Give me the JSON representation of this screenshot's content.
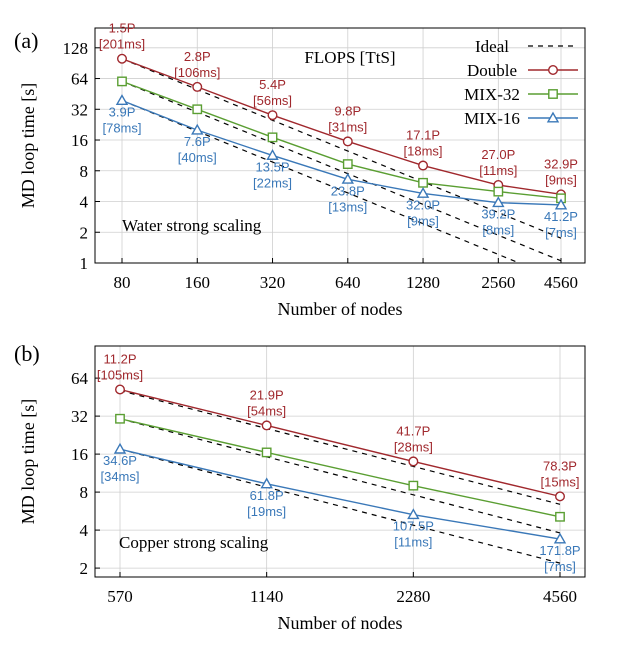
{
  "chart_data": [
    {
      "type": "line",
      "panel_label": "(a)",
      "xlabel": "Number of nodes",
      "ylabel": "MD loop time [s]",
      "x_scale": "log2",
      "y_scale": "log2",
      "x": [
        80,
        160,
        320,
        640,
        1280,
        2560,
        4560
      ],
      "x_tick_labels": [
        "80",
        "160",
        "320",
        "640",
        "1280",
        "2560",
        "4560"
      ],
      "ylim": [
        1,
        200
      ],
      "y_ticks": [
        1,
        2,
        4,
        8,
        16,
        32,
        64,
        128
      ],
      "y_tick_labels": [
        "1",
        "2",
        "4",
        "8",
        "16",
        "32",
        "64",
        "128"
      ],
      "grid": true,
      "legend_position": "top-right",
      "flops_label": "FLOPS [TtS]",
      "annotation": "Water strong scaling",
      "series": [
        {
          "name": "Ideal",
          "style": "dashed",
          "color": "#000000",
          "marker": "none",
          "lines": [
            {
              "x": [
                80,
                4560
              ],
              "y": [
                100,
                1.75
              ]
            },
            {
              "x": [
                80,
                4560
              ],
              "y": [
                60,
                1.05
              ]
            },
            {
              "x": [
                80,
                4560
              ],
              "y": [
                39,
                0.68
              ]
            }
          ]
        },
        {
          "name": "Double",
          "color": "#a0282d",
          "marker": "circle",
          "values": [
            100,
            53,
            28,
            15.5,
            9,
            5.8,
            4.7
          ],
          "labels": [
            {
              "flops": "1.5P",
              "time": "[201ms]",
              "pos": "above"
            },
            {
              "flops": "2.8P",
              "time": "[106ms]",
              "pos": "above"
            },
            {
              "flops": "5.4P",
              "time": "[56ms]",
              "pos": "above"
            },
            {
              "flops": "9.8P",
              "time": "[31ms]",
              "pos": "above"
            },
            {
              "flops": "17.1P",
              "time": "[18ms]",
              "pos": "above"
            },
            {
              "flops": "27.0P",
              "time": "[11ms]",
              "pos": "above"
            },
            {
              "flops": "32.9P",
              "time": "[9ms]",
              "pos": "above"
            }
          ]
        },
        {
          "name": "MIX-32",
          "color": "#5a9e32",
          "marker": "square",
          "values": [
            60,
            32,
            17,
            9.3,
            6.1,
            5,
            4.3
          ],
          "labels": []
        },
        {
          "name": "MIX-16",
          "color": "#3a78b8",
          "marker": "triangle",
          "values": [
            39,
            20,
            11.3,
            6.6,
            4.8,
            3.9,
            3.7
          ],
          "labels": [
            {
              "flops": "3.9P",
              "time": "[78ms]",
              "pos": "below"
            },
            {
              "flops": "7.6P",
              "time": "[40ms]",
              "pos": "below"
            },
            {
              "flops": "13.5P",
              "time": "[22ms]",
              "pos": "below"
            },
            {
              "flops": "23.8P",
              "time": "[13ms]",
              "pos": "below"
            },
            {
              "flops": "32.0P",
              "time": "[9ms]",
              "pos": "below"
            },
            {
              "flops": "39.2P",
              "time": "[8ms]",
              "pos": "below"
            },
            {
              "flops": "41.2P",
              "time": "[7ms]",
              "pos": "below"
            }
          ]
        }
      ]
    },
    {
      "type": "line",
      "panel_label": "(b)",
      "xlabel": "Number of nodes",
      "ylabel": "MD loop time [s]",
      "x_scale": "log2",
      "y_scale": "log2",
      "x": [
        570,
        1140,
        2280,
        4560
      ],
      "x_tick_labels": [
        "570",
        "1140",
        "2280",
        "4560"
      ],
      "ylim": [
        1.7,
        115
      ],
      "y_ticks": [
        2,
        4,
        8,
        16,
        32,
        64
      ],
      "y_tick_labels": [
        "2",
        "4",
        "8",
        "16",
        "32",
        "64"
      ],
      "grid": true,
      "annotation": "Copper strong scaling",
      "series": [
        {
          "name": "Ideal",
          "style": "dashed",
          "color": "#000000",
          "marker": "none",
          "lines": [
            {
              "x": [
                570,
                4560
              ],
              "y": [
                51,
                6.4
              ]
            },
            {
              "x": [
                570,
                4560
              ],
              "y": [
                30.5,
                3.8
              ]
            },
            {
              "x": [
                570,
                4560
              ],
              "y": [
                17.5,
                2.19
              ]
            }
          ]
        },
        {
          "name": "Double",
          "color": "#a0282d",
          "marker": "circle",
          "values": [
            52,
            27,
            14,
            7.4
          ],
          "labels": [
            {
              "flops": "11.2P",
              "time": "[105ms]",
              "pos": "above"
            },
            {
              "flops": "21.9P",
              "time": "[54ms]",
              "pos": "above"
            },
            {
              "flops": "41.7P",
              "time": "[28ms]",
              "pos": "above"
            },
            {
              "flops": "78.3P",
              "time": "[15ms]",
              "pos": "above"
            }
          ]
        },
        {
          "name": "MIX-32",
          "color": "#5a9e32",
          "marker": "square",
          "values": [
            30.5,
            16.5,
            9,
            5.1
          ],
          "labels": []
        },
        {
          "name": "MIX-16",
          "color": "#3a78b8",
          "marker": "triangle",
          "values": [
            17.5,
            9.3,
            5.3,
            3.4
          ],
          "labels": [
            {
              "flops": "34.6P",
              "time": "[34ms]",
              "pos": "below"
            },
            {
              "flops": "61.8P",
              "time": "[19ms]",
              "pos": "below"
            },
            {
              "flops": "107.5P",
              "time": "[11ms]",
              "pos": "below"
            },
            {
              "flops": "171.8P",
              "time": "[7ms]",
              "pos": "below"
            }
          ]
        }
      ]
    }
  ]
}
